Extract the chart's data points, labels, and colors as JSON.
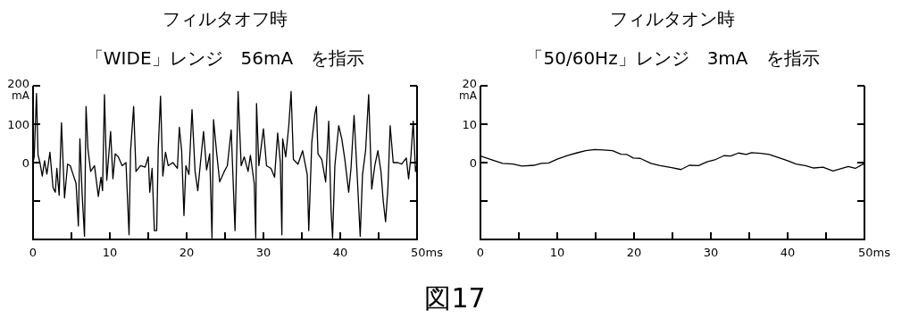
{
  "chart_data": [
    {
      "type": "line",
      "title": "フィルタオフ時",
      "subtitle": "「WIDE」レンジ　56mA　を指示",
      "ylabel": "mA",
      "xlim": [
        0,
        50
      ],
      "xticks": [
        0,
        {
          "value": 5,
          "label": null
        },
        10,
        {
          "value": 15,
          "label": null
        },
        20,
        {
          "value": 25,
          "label": null
        },
        30,
        {
          "value": 35,
          "label": null
        },
        40,
        {
          "value": 45,
          "label": null
        },
        {
          "value": 50,
          "label": "50ms"
        }
      ],
      "ylim": [
        -200,
        200
      ],
      "yticks": [
        {
          "value": -100,
          "label": null
        },
        0,
        100,
        200
      ],
      "grid": false,
      "annotations": [
        "図17"
      ],
      "series": [
        {
          "color": "#000000",
          "x": [
            0,
            0.15,
            0.45,
            0.65,
            0.9,
            1.2,
            1.5,
            1.8,
            2.2,
            2.6,
            2.9,
            3.1,
            3.4,
            3.7,
            4.1,
            4.5,
            4.85,
            5.2,
            5.6,
            5.9,
            6.1,
            6.4,
            6.7,
            6.9,
            7.15,
            7.5,
            8.0,
            8.5,
            8.85,
            9.05,
            9.3,
            9.6,
            10.1,
            10.4,
            10.7,
            11.1,
            11.6,
            12.1,
            12.5,
            12.7,
            13.1,
            13.4,
            14.0,
            14.6,
            15.0,
            15.2,
            15.5,
            15.8,
            16.1,
            16.3,
            16.6,
            16.9,
            17.25,
            17.6,
            18.2,
            18.8,
            19.05,
            19.35,
            19.65,
            19.9,
            20.3,
            20.7,
            21.1,
            21.45,
            21.8,
            22.2,
            22.6,
            23.0,
            23.3,
            23.5,
            23.9,
            24.3,
            24.9,
            25.3,
            25.8,
            26.3,
            26.7,
            27.1,
            27.5,
            28.0,
            28.3,
            28.8,
            29.0,
            29.1,
            29.4,
            30.0,
            30.4,
            30.98,
            31.45,
            31.85,
            32.2,
            32.4,
            32.5,
            32.9,
            33.3,
            33.6,
            33.9,
            34.5,
            35.1,
            35.7,
            35.9,
            36.3,
            36.7,
            36.9,
            37.1,
            37.6,
            38.1,
            38.5,
            38.8,
            39.0,
            39.3,
            39.8,
            40.2,
            40.6,
            41.1,
            41.4,
            41.8,
            42.2,
            42.6,
            42.9,
            43.3,
            43.7,
            44.1,
            44.5,
            44.9,
            45.3,
            45.6,
            45.9,
            46.2,
            46.5,
            46.9,
            47.5,
            48.0,
            48.6,
            48.9,
            49.2,
            49.5,
            49.8,
            50
          ],
          "values": [
            0,
            15,
            180,
            20,
            0,
            -35,
            5,
            -30,
            27,
            -65,
            -77,
            -15,
            -85,
            104,
            -92,
            -4,
            -8,
            -30,
            -54,
            -165,
            62,
            -85,
            -192,
            146,
            35,
            -23,
            -8,
            -88,
            -38,
            -73,
            177,
            -46,
            81,
            -42,
            23,
            15,
            -8,
            0,
            -188,
            31,
            146,
            -23,
            -8,
            -12,
            15,
            -77,
            -15,
            -177,
            -177,
            35,
            173,
            -35,
            27,
            -8,
            0,
            -15,
            92,
            31,
            -138,
            -8,
            -31,
            138,
            -23,
            -73,
            0,
            81,
            -19,
            23,
            -196,
            112,
            27,
            -50,
            -23,
            -8,
            85,
            -177,
            185,
            -8,
            15,
            -23,
            19,
            -54,
            -196,
            154,
            -8,
            88,
            -8,
            -15,
            -38,
            77,
            0,
            -188,
            62,
            15,
            96,
            185,
            8,
            -4,
            31,
            -31,
            -177,
            54,
            127,
            146,
            23,
            8,
            -50,
            108,
            -123,
            -196,
            -8,
            96,
            62,
            8,
            -77,
            -15,
            123,
            -31,
            -192,
            -31,
            31,
            177,
            -69,
            -8,
            31,
            -23,
            -100,
            -154,
            -69,
            96,
            0,
            0,
            -4,
            12,
            -42,
            15,
            108,
            -23,
            -4
          ]
        }
      ]
    },
    {
      "type": "line",
      "title": "フィルタオン時",
      "subtitle": "「50/60Hz」レンジ　3mA　を指示",
      "ylabel": "mA",
      "xlim": [
        0,
        50
      ],
      "xticks": [
        0,
        {
          "value": 5,
          "label": null
        },
        10,
        {
          "value": 15,
          "label": null
        },
        20,
        {
          "value": 25,
          "label": null
        },
        30,
        {
          "value": 35,
          "label": null
        },
        40,
        {
          "value": 45,
          "label": null
        },
        {
          "value": 50,
          "label": "50ms"
        }
      ],
      "ylim": [
        -20,
        20
      ],
      "yticks": [
        {
          "value": -10,
          "label": null
        },
        0,
        10,
        20
      ],
      "grid": false,
      "series": [
        {
          "color": "#000000",
          "x": [
            0,
            2,
            2.9,
            4.25,
            5.4,
            6.95,
            7.9,
            8.9,
            10.0,
            11.4,
            12.5,
            13.7,
            14.9,
            16.0,
            17.2,
            18.3,
            19.1,
            19.9,
            20.8,
            22.2,
            23.4,
            24.9,
            26.1,
            27.2,
            28.4,
            29.5,
            30.5,
            31.7,
            32.6,
            33.6,
            34.6,
            35.3,
            36.5,
            37.6,
            38.8,
            40.0,
            41.1,
            42.3,
            43.4,
            44.6,
            45.9,
            46.9,
            47.9,
            48.8,
            50
          ],
          "values": [
            1.7,
            0.4,
            -0.2,
            -0.4,
            -0.9,
            -0.7,
            -0.2,
            -0.1,
            0.9,
            1.9,
            2.5,
            3.1,
            3.4,
            3.3,
            3.1,
            2.2,
            2.1,
            1.2,
            1.1,
            -0.2,
            -0.8,
            -1.3,
            -1.8,
            -0.7,
            -0.8,
            0.2,
            0.7,
            1.8,
            1.7,
            2.5,
            2.1,
            2.6,
            2.4,
            2.1,
            1.3,
            0.5,
            -0.4,
            -0.8,
            -1.4,
            -1.2,
            -2.2,
            -1.6,
            -1.0,
            -1.5,
            -0.2
          ]
        }
      ]
    }
  ]
}
